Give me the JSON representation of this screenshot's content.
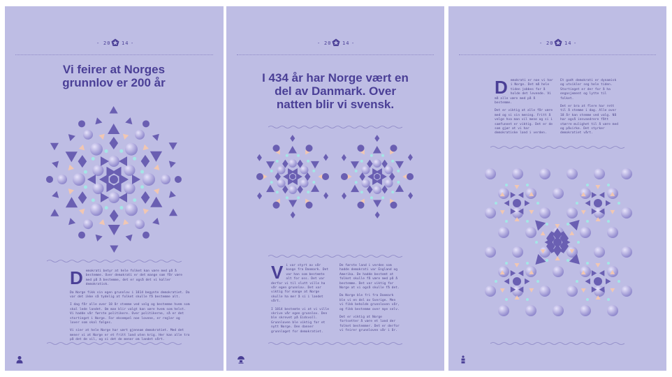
{
  "header": {
    "year_left": "20",
    "year_right": "14",
    "emblem": "pentagon-star-icon",
    "dashes": "-"
  },
  "panels": [
    {
      "title": "Vi feirer at Norges grunnlov er 200 år",
      "dropcap": "D",
      "paragraphs": [
        "emokrati betyr at hele folket kan være med på å bestemme. Over demokrati er det mange som får være med på å bestemme, det er også det vi kaller demokratisk.",
        "Da Norge fikk sin egen grunnlov i 1814 begynte demokratiet. Da var det ikke så tydelig at folket skulle få bestemme alt.",
        "I dag får alle over 18 år stemme ved valg og bestemme hvem som skal lede landet. Om man blir valgt kan være hvem som helst. Vi hadde vår første politikere. Over politikerne, så er det stortinget i Norge. For eksempel noe lovene, er regler og lover som skal følges.",
        "Vi sier at hele Norge har vært gjennom demokratiet. Med det mener vi at Norge er et fritt land uten krig. Her kan alle tro på det de vil, og si det de mener om landet vårt."
      ],
      "footer_icon": "person-icon"
    },
    {
      "title": "I 434 år har Norge vært en del av Danmark. Over natten blir vi svensk.",
      "dropcap": "V",
      "col1": [
        "i var styrt av vår konge fra Danmark. Det var han som bestemte alt for oss. Det var derfor vi til slutt ville ha vår egen grunnlov. Det var viktig for mange at Norge skulle ha mer å si i landet vårt.",
        "I 1814 bestemte vi at vi ville skrive vår egen grunnlov. Den ble skrevet på Eidsvoll. Grunnloven ble viktig for et nytt Norge. Den danner grunnlaget for demokratiet."
      ],
      "col2": [
        "De første land i verden som hadde demokrati var England og Amerika. De hadde bestemt at folket skulle få være med på å bestemme. Det var viktig for Norge at vi også skulle få det.",
        "Da Norge ble fri fra Danmark ble vi en del av Sverige. Men vi fikk beholde grunnloven vår, og fikk bestemme over mye selv.",
        "Det er viktig at Norge fortsetter å være et land der folket bestemmer. Det er derfor vi feirer grunnloven vår i år."
      ],
      "footer_icon": "globe-icon"
    },
    {
      "dropcap": "D",
      "col1": [
        "emokrati er noe vi har i Norge. Det må hele tiden jobbes for å holde det levende. Vi må alle være med på å bestemme.",
        "Det er viktig at alle får være med og si sin mening. Fritt å velge hva man vil mene og si i samfunnet er viktig. Det er de som gjør at vi har demokratiske land i verden."
      ],
      "col2": [
        "Et godt demokrati er dynamisk og utvikler seg hele tiden. Stortinget er der for å ha engasjement og lytte til folket.",
        "Det er bra at flere har rett til å stemme i dag. Alle over 18 år kan stemme ved valg. Nå har også innvandrere fått større mulighet til å være med og påvirke. Det styrker demokratiet vårt."
      ],
      "footer_icon": "info-icon"
    }
  ],
  "colors": {
    "page": "#bebde4",
    "ink": "#4a3f96",
    "shape": "#6a5fb2",
    "pale": "#d8d5f0",
    "mint": "#a4e6e6",
    "peach": "#f1c7b2"
  }
}
